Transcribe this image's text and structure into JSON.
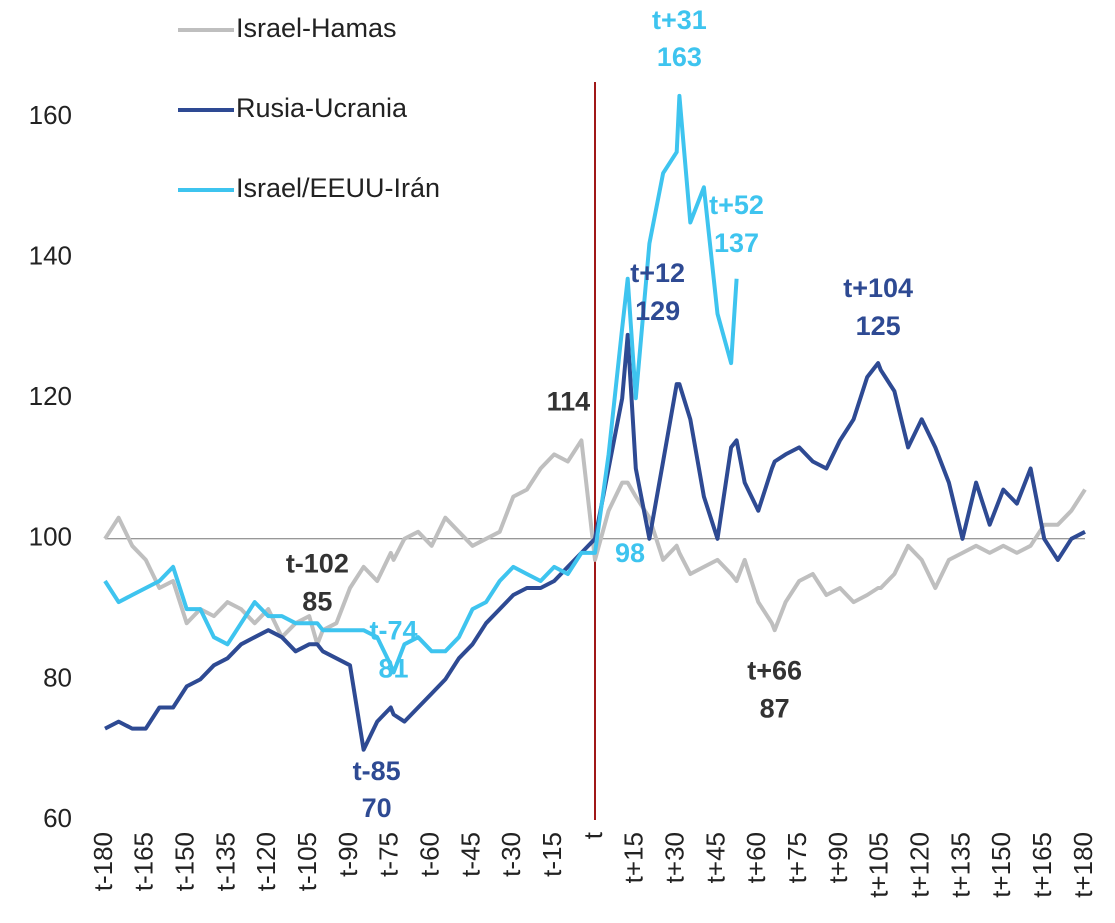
{
  "chart_data": {
    "type": "line",
    "x": [
      -180,
      -175,
      -170,
      -165,
      -160,
      -155,
      -150,
      -145,
      -140,
      -135,
      -130,
      -125,
      -120,
      -115,
      -110,
      -105,
      -102,
      -100,
      -95,
      -90,
      -85,
      -80,
      -75,
      -74,
      -70,
      -65,
      -60,
      -55,
      -50,
      -45,
      -40,
      -35,
      -30,
      -25,
      -20,
      -15,
      -10,
      -5,
      0,
      5,
      10,
      12,
      15,
      20,
      25,
      30,
      31,
      35,
      40,
      45,
      50,
      52,
      55,
      60,
      65,
      66,
      70,
      75,
      80,
      85,
      90,
      95,
      100,
      104,
      105,
      110,
      115,
      120,
      125,
      130,
      135,
      140,
      145,
      150,
      155,
      160,
      165,
      170,
      175,
      180
    ],
    "series": [
      {
        "name": "Israel-Hamas",
        "color": "#bfbfbf",
        "values": [
          100,
          103,
          99,
          97,
          93,
          94,
          88,
          90,
          89,
          91,
          90,
          88,
          90,
          86,
          88,
          89,
          85,
          87,
          88,
          93,
          96,
          94,
          98,
          97,
          100,
          101,
          99,
          103,
          101,
          99,
          100,
          101,
          106,
          107,
          110,
          112,
          111,
          114,
          97,
          104,
          108,
          108,
          106,
          103,
          97,
          99,
          98,
          95,
          96,
          97,
          95,
          94,
          97,
          91,
          88,
          87,
          91,
          94,
          95,
          92,
          93,
          91,
          92,
          93,
          93,
          95,
          99,
          97,
          93,
          97,
          98,
          99,
          98,
          99,
          98,
          99,
          102,
          102,
          104,
          107
        ],
        "annotations": [
          {
            "label": "t-102",
            "x": -102,
            "value": 85
          },
          {
            "x": -5,
            "value": 114
          },
          {
            "label": "t+66",
            "x": 66,
            "value": 87
          }
        ]
      },
      {
        "name": "Rusia-Ucrania",
        "color": "#2e4a93",
        "values": [
          73,
          74,
          73,
          73,
          76,
          76,
          79,
          80,
          82,
          83,
          85,
          86,
          87,
          86,
          84,
          85,
          85,
          84,
          83,
          82,
          70,
          74,
          76,
          75,
          74,
          76,
          78,
          80,
          83,
          85,
          88,
          90,
          92,
          93,
          93,
          94,
          96,
          98,
          100,
          110,
          120,
          129,
          110,
          100,
          111,
          122,
          122,
          117,
          106,
          100,
          113,
          114,
          108,
          104,
          110,
          111,
          112,
          113,
          111,
          110,
          114,
          117,
          123,
          125,
          124,
          121,
          113,
          117,
          113,
          108,
          100,
          108,
          102,
          107,
          105,
          110,
          100,
          97,
          100,
          101
        ],
        "annotations": [
          {
            "label": "t-85",
            "x": -85,
            "value": 70
          },
          {
            "label": "t+12",
            "x": 12,
            "value": 129
          },
          {
            "label": "t+104",
            "x": 104,
            "value": 125
          }
        ]
      },
      {
        "name": "Israel/EEUU-Irán",
        "color": "#3ec4ef",
        "values": [
          94,
          91,
          92,
          93,
          94,
          96,
          90,
          90,
          86,
          85,
          88,
          91,
          89,
          89,
          88,
          88,
          88,
          87,
          87,
          87,
          87,
          86,
          82,
          81,
          85,
          86,
          84,
          84,
          86,
          90,
          91,
          94,
          96,
          95,
          94,
          96,
          95,
          98,
          98,
          112,
          130,
          137,
          120,
          142,
          152,
          155,
          163,
          145,
          150,
          132,
          125,
          137,
          null,
          null,
          null,
          null,
          null,
          null,
          null,
          null,
          null,
          null,
          null,
          null,
          null,
          null,
          null,
          null,
          null,
          null,
          null,
          null,
          null,
          null,
          null,
          null,
          null,
          null,
          null,
          null
        ],
        "annotations": [
          {
            "label": "t-74",
            "x": -74,
            "value": 81
          },
          {
            "x": 0,
            "value": 98
          },
          {
            "label": "t+31",
            "x": 31,
            "value": 163
          },
          {
            "label": "t+52",
            "x": 52,
            "value": 137
          }
        ]
      }
    ],
    "xlim": [
      -180,
      180
    ],
    "xticks": [
      {
        "value": -180,
        "label": "t-180"
      },
      {
        "value": -165,
        "label": "t-165"
      },
      {
        "value": -150,
        "label": "t-150"
      },
      {
        "value": -135,
        "label": "t-135"
      },
      {
        "value": -120,
        "label": "t-120"
      },
      {
        "value": -105,
        "label": "t-105"
      },
      {
        "value": -90,
        "label": "t-90"
      },
      {
        "value": -75,
        "label": "t-75"
      },
      {
        "value": -60,
        "label": "t-60"
      },
      {
        "value": -45,
        "label": "t-45"
      },
      {
        "value": -30,
        "label": "t-30"
      },
      {
        "value": -15,
        "label": "t-15"
      },
      {
        "value": 0,
        "label": "t"
      },
      {
        "value": 15,
        "label": "t+15"
      },
      {
        "value": 30,
        "label": "t+30"
      },
      {
        "value": 45,
        "label": "t+45"
      },
      {
        "value": 60,
        "label": "t+60"
      },
      {
        "value": 75,
        "label": "t+75"
      },
      {
        "value": 90,
        "label": "t+90"
      },
      {
        "value": 105,
        "label": "t+105"
      },
      {
        "value": 120,
        "label": "t+120"
      },
      {
        "value": 135,
        "label": "t+135"
      },
      {
        "value": 150,
        "label": "t+150"
      },
      {
        "value": 165,
        "label": "t+165"
      },
      {
        "value": 180,
        "label": "t+180"
      }
    ],
    "ylim": [
      60,
      160
    ],
    "yticks": [
      60,
      80,
      100,
      120,
      140,
      160
    ],
    "reference_line": 100,
    "event_x": 0,
    "grid": false,
    "legend": "top-left"
  }
}
